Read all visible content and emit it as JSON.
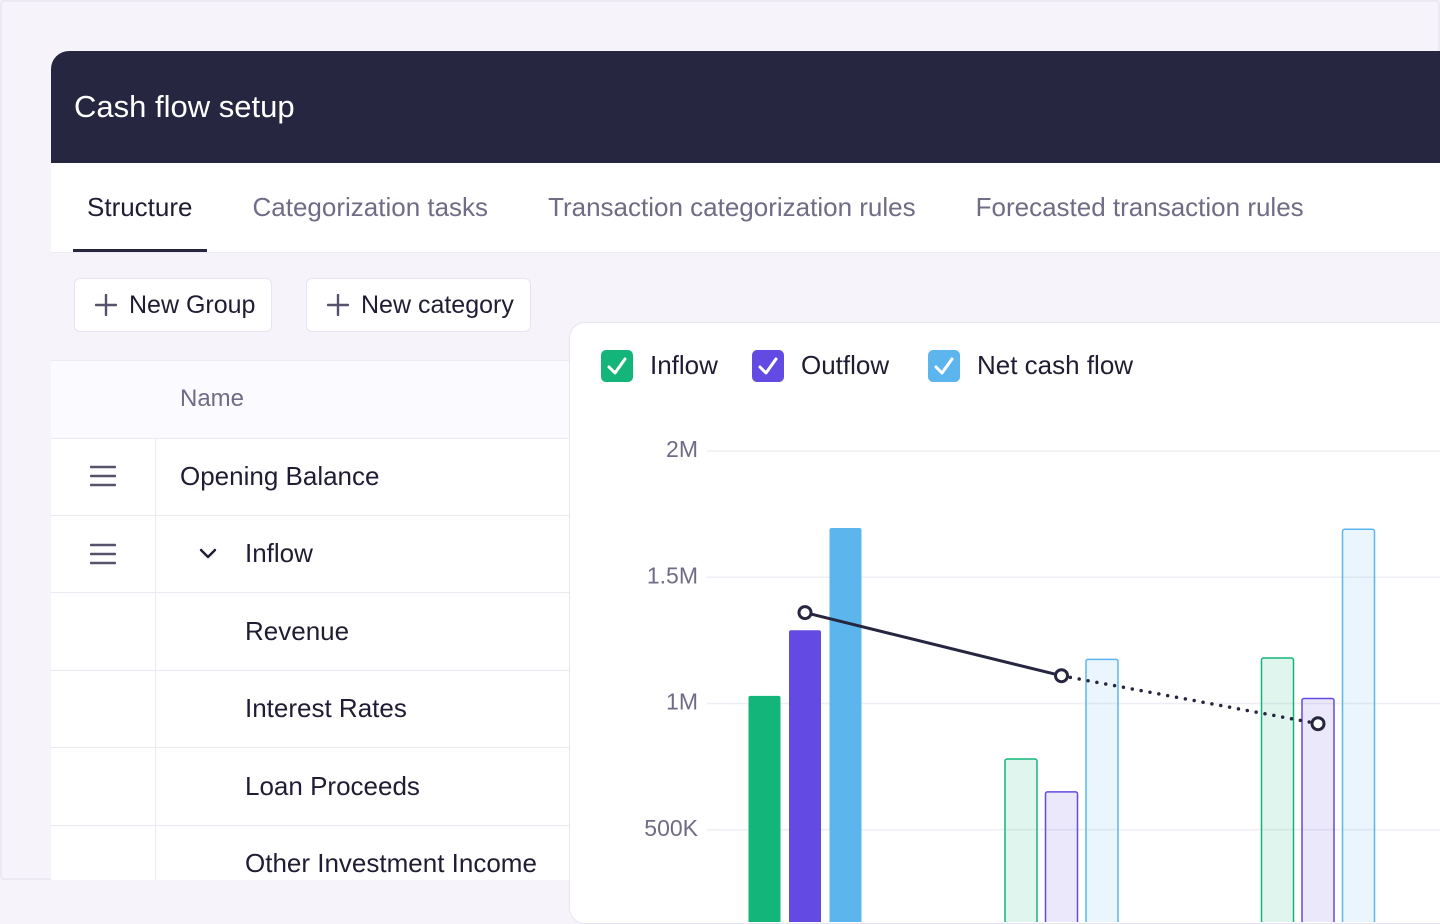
{
  "header": {
    "title": "Cash flow setup"
  },
  "tabs": {
    "items": [
      "Structure",
      "Categorization tasks",
      "Transaction categorization rules",
      "Forecasted transaction rules"
    ],
    "active": 0
  },
  "buttons": [
    "New Group",
    "New category"
  ],
  "table": {
    "header": "Name",
    "rows": [
      {
        "label": "Opening Balance",
        "level": 0,
        "draggable": true,
        "expandable": false
      },
      {
        "label": "Inflow",
        "level": 0,
        "draggable": true,
        "expandable": true
      },
      {
        "label": "Revenue",
        "level": 1,
        "draggable": false,
        "expandable": false
      },
      {
        "label": "Interest Rates",
        "level": 1,
        "draggable": false,
        "expandable": false
      },
      {
        "label": "Loan Proceeds",
        "level": 1,
        "draggable": false,
        "expandable": false
      },
      {
        "label": "Other Investment Income",
        "level": 1,
        "draggable": false,
        "expandable": false
      }
    ]
  },
  "chart_data": {
    "type": "bar",
    "categories": [
      null,
      null,
      null
    ],
    "forecast": [
      false,
      true,
      true
    ],
    "series": [
      {
        "name": "Inflow",
        "color": "#13b57a",
        "values": [
          1030000,
          780000,
          1180000
        ]
      },
      {
        "name": "Outflow",
        "color": "#634ae2",
        "values": [
          1290000,
          650000,
          1020000
        ]
      },
      {
        "name": "Net cash flow",
        "color": "#5db5ee",
        "values": [
          1695000,
          1175000,
          1690000
        ]
      }
    ],
    "line": {
      "color": "#272640",
      "values": [
        1360000,
        1110000,
        920000
      ]
    },
    "ylim": [
      0,
      2000000
    ],
    "yticks": [
      {
        "value": 500000,
        "label": "500K"
      },
      {
        "value": 1000000,
        "label": "1M"
      },
      {
        "value": 1500000,
        "label": "1.5M"
      },
      {
        "value": 2000000,
        "label": "2M"
      }
    ],
    "grid": true
  }
}
